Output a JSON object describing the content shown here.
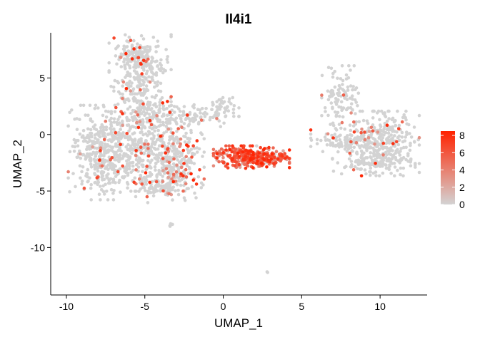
{
  "chart_data": {
    "type": "scatter",
    "title": "Il4i1",
    "xlabel": "UMAP_1",
    "ylabel": "UMAP_2",
    "xlim": [
      -11,
      13
    ],
    "ylim": [
      -14.2,
      9
    ],
    "xticks": [
      -10,
      -5,
      0,
      5,
      10
    ],
    "yticks": [
      5,
      0,
      -5,
      -10
    ],
    "grid": false,
    "legend": {
      "placement": "right",
      "min": 0,
      "max": 8.5,
      "ticks": [
        0,
        2,
        4,
        6,
        8
      ],
      "low_color": "#d3d3d3",
      "high_color": "#ff2200"
    },
    "clusters": [
      {
        "name": "left-upper-arm",
        "cx": -5.3,
        "cy": 5.2,
        "sx": 0.9,
        "sy": 1.8,
        "n": 260,
        "expr_frac": 0.06
      },
      {
        "name": "left-top",
        "cx": -5.6,
        "cy": 7.0,
        "sx": 0.6,
        "sy": 0.5,
        "n": 90,
        "expr_frac": 0.05
      },
      {
        "name": "left-west",
        "cx": -7.9,
        "cy": -1.6,
        "sx": 0.9,
        "sy": 1.9,
        "n": 320,
        "expr_frac": 0.05
      },
      {
        "name": "left-center",
        "cx": -5.8,
        "cy": -1.5,
        "sx": 1.2,
        "sy": 1.6,
        "n": 300,
        "expr_frac": 0.07
      },
      {
        "name": "left-mid-upper",
        "cx": -4.5,
        "cy": 1.6,
        "sx": 1.2,
        "sy": 0.9,
        "n": 170,
        "expr_frac": 0.08
      },
      {
        "name": "left-east",
        "cx": -3.2,
        "cy": -1.8,
        "sx": 0.9,
        "sy": 1.6,
        "n": 240,
        "expr_frac": 0.14
      },
      {
        "name": "left-south",
        "cx": -3.7,
        "cy": -4.3,
        "sx": 1.1,
        "sy": 0.8,
        "n": 170,
        "expr_frac": 0.1
      },
      {
        "name": "left-bridge",
        "cx": -1.2,
        "cy": 1.8,
        "sx": 1.0,
        "sy": 0.5,
        "n": 80,
        "expr_frac": 0.05
      },
      {
        "name": "left-bridge-top",
        "cx": 0.0,
        "cy": 2.6,
        "sx": 0.3,
        "sy": 0.3,
        "n": 25,
        "expr_frac": 0.0
      },
      {
        "name": "center-expressing",
        "cx": 1.8,
        "cy": -2.0,
        "sx": 1.1,
        "sy": 0.45,
        "n": 380,
        "expr_frac": 0.92
      },
      {
        "name": "right-arm",
        "cx": 7.6,
        "cy": 3.0,
        "sx": 0.6,
        "sy": 1.4,
        "n": 110,
        "expr_frac": 0.03
      },
      {
        "name": "right-main",
        "cx": 10.3,
        "cy": -0.8,
        "sx": 1.0,
        "sy": 1.3,
        "n": 300,
        "expr_frac": 0.04
      },
      {
        "name": "right-west",
        "cx": 8.0,
        "cy": -0.7,
        "sx": 1.1,
        "sy": 0.5,
        "n": 120,
        "expr_frac": 0.06
      },
      {
        "name": "right-south",
        "cx": 9.6,
        "cy": -2.6,
        "sx": 1.2,
        "sy": 0.4,
        "n": 100,
        "expr_frac": 0.02
      },
      {
        "name": "outlier-a",
        "cx": -3.4,
        "cy": -8.0,
        "sx": 0.1,
        "sy": 0.08,
        "n": 5,
        "expr_frac": 0.0
      },
      {
        "name": "outlier-b",
        "cx": 2.8,
        "cy": -12.2,
        "sx": 0.03,
        "sy": 0.03,
        "n": 2,
        "expr_frac": 0.0
      }
    ]
  }
}
